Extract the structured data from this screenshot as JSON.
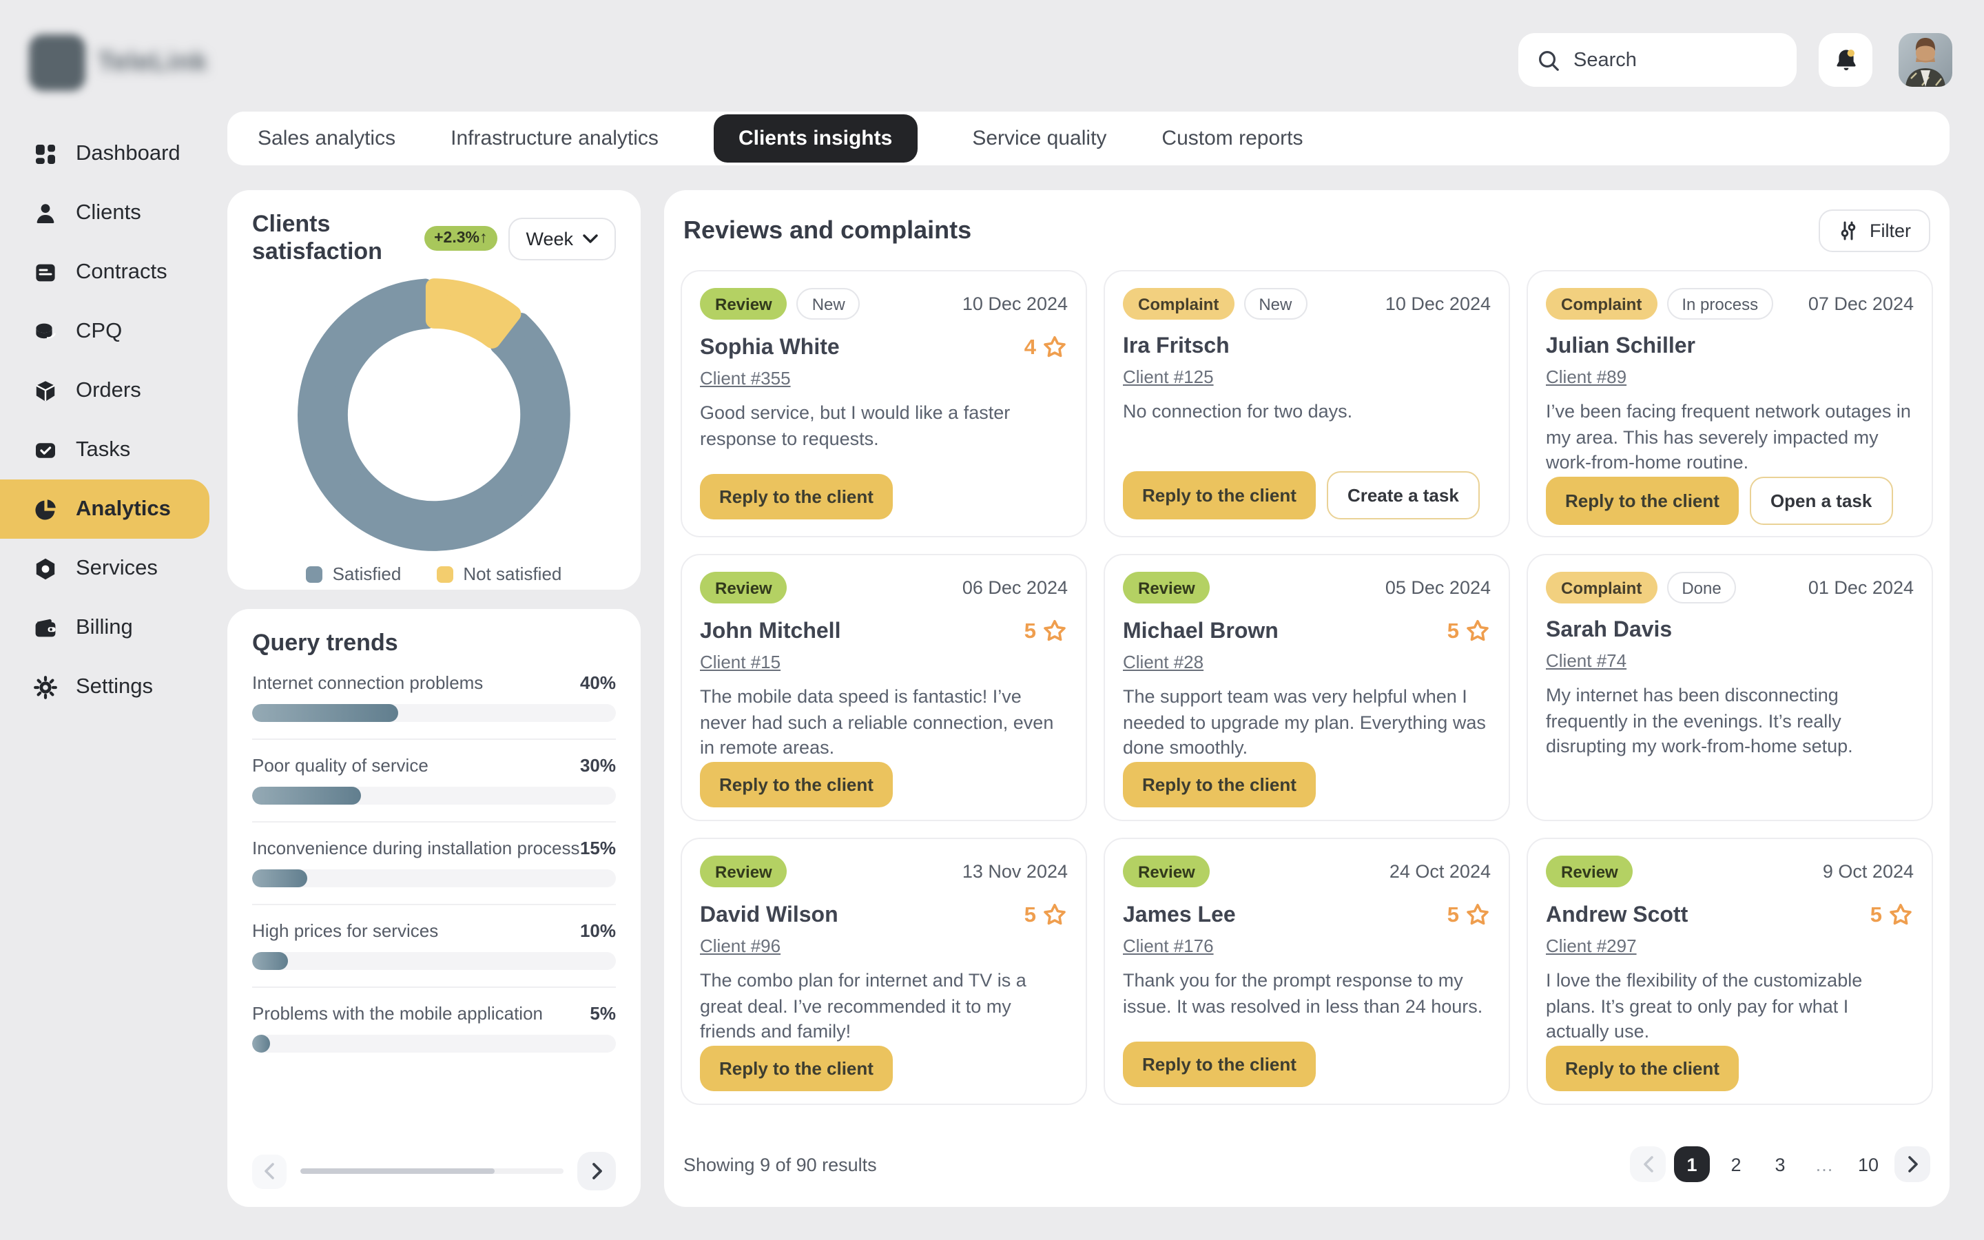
{
  "app": {
    "logo_text": "TeleLink"
  },
  "topbar": {
    "search_placeholder": "Search"
  },
  "sidebar": {
    "items": [
      {
        "label": "Dashboard",
        "icon": "dashboard",
        "active": false
      },
      {
        "label": "Clients",
        "icon": "user",
        "active": false
      },
      {
        "label": "Contracts",
        "icon": "contract",
        "active": false
      },
      {
        "label": "CPQ",
        "icon": "coins",
        "active": false
      },
      {
        "label": "Orders",
        "icon": "box",
        "active": false
      },
      {
        "label": "Tasks",
        "icon": "task",
        "active": false
      },
      {
        "label": "Analytics",
        "icon": "pie",
        "active": true
      },
      {
        "label": "Services",
        "icon": "hexnut",
        "active": false
      },
      {
        "label": "Billing",
        "icon": "wallet",
        "active": false
      },
      {
        "label": "Settings",
        "icon": "gear",
        "active": false
      }
    ]
  },
  "tabs": [
    {
      "label": "Sales analytics",
      "active": false
    },
    {
      "label": "Infrastructure analytics",
      "active": false
    },
    {
      "label": "Clients insights",
      "active": true
    },
    {
      "label": "Service quality",
      "active": false
    },
    {
      "label": "Custom reports",
      "active": false
    }
  ],
  "satisfaction": {
    "title": "Clients satisfaction",
    "badge": "+2.3%↑",
    "period": "Week",
    "colors": {
      "satisfied": "#7E96A6",
      "not_satisfied": "#F3CD6E"
    },
    "legend": [
      {
        "label": "Satisfied",
        "color": "#7E96A6"
      },
      {
        "label": "Not satisfied",
        "color": "#F3CD6E"
      }
    ]
  },
  "query_trends": {
    "title": "Query trends",
    "items": [
      {
        "label": "Internet connection problems",
        "pct": 40
      },
      {
        "label": "Poor quality of service",
        "pct": 30
      },
      {
        "label": "Inconvenience during installation process",
        "pct": 15
      },
      {
        "label": "High prices for services",
        "pct": 10
      },
      {
        "label": "Problems with the mobile application",
        "pct": 5
      }
    ]
  },
  "chart_data": [
    {
      "type": "pie",
      "title": "Clients satisfaction",
      "labels": [
        "Satisfied",
        "Not satisfied"
      ],
      "values": [
        88,
        12
      ],
      "colors": [
        "#7E96A6",
        "#F3CD6E"
      ],
      "legend_position": "bottom"
    },
    {
      "type": "bar",
      "title": "Query trends",
      "categories": [
        "Internet connection problems",
        "Poor quality of service",
        "Inconvenience during installation process",
        "High prices for services",
        "Problems with the mobile application"
      ],
      "values": [
        40,
        30,
        15,
        10,
        5
      ],
      "xlabel": "",
      "ylabel": "",
      "xlim": [
        0,
        100
      ],
      "unit": "%"
    }
  ],
  "reviews": {
    "title": "Reviews and complaints",
    "filter_label": "Filter",
    "cards": [
      {
        "type": "Review",
        "status": "New",
        "date": "10 Dec 2024",
        "name": "Sophia White",
        "client": "Client #355",
        "rating": 4,
        "text": "Good service, but I would like a faster response to requests.",
        "actions": [
          {
            "label": "Reply to the client",
            "style": "primary"
          }
        ]
      },
      {
        "type": "Complaint",
        "status": "New",
        "date": "10 Dec 2024",
        "name": "Ira Fritsch",
        "client": "Client #125",
        "rating": null,
        "text": "No connection for two days.",
        "actions": [
          {
            "label": "Reply to the client",
            "style": "primary"
          },
          {
            "label": "Create a task",
            "style": "secondary"
          }
        ]
      },
      {
        "type": "Complaint",
        "status": "In process",
        "date": "07 Dec 2024",
        "name": "Julian Schiller",
        "client": "Client #89",
        "rating": null,
        "text": "I’ve been facing frequent network outages in my area. This has severely impacted my work-from-home routine.",
        "actions": [
          {
            "label": "Reply to the client",
            "style": "primary"
          },
          {
            "label": "Open a task",
            "style": "secondary"
          }
        ]
      },
      {
        "type": "Review",
        "status": null,
        "date": "06 Dec 2024",
        "name": "John Mitchell",
        "client": "Client #15",
        "rating": 5,
        "text": "The mobile data speed is fantastic! I’ve never had such a reliable connection, even in remote areas.",
        "actions": [
          {
            "label": "Reply to the client",
            "style": "primary"
          }
        ]
      },
      {
        "type": "Review",
        "status": null,
        "date": "05 Dec 2024",
        "name": "Michael Brown",
        "client": "Client #28",
        "rating": 5,
        "text": "The support team was very helpful when I needed to upgrade my plan. Everything was done smoothly.",
        "actions": [
          {
            "label": "Reply to the client",
            "style": "primary"
          }
        ]
      },
      {
        "type": "Complaint",
        "status": "Done",
        "date": "01 Dec 2024",
        "name": "Sarah Davis",
        "client": "Client #74",
        "rating": null,
        "text": "My internet has been disconnecting frequently in the evenings. It’s really disrupting my work-from-home setup.",
        "actions": []
      },
      {
        "type": "Review",
        "status": null,
        "date": "13 Nov 2024",
        "name": "David Wilson",
        "client": "Client #96",
        "rating": 5,
        "text": "The combo plan for internet and TV is a great deal. I’ve recommended it to my friends and family!",
        "actions": [
          {
            "label": "Reply to the client",
            "style": "primary"
          }
        ]
      },
      {
        "type": "Review",
        "status": null,
        "date": "24 Oct 2024",
        "name": "James Lee",
        "client": "Client #176",
        "rating": 5,
        "text": "Thank you for the prompt response to my issue. It was resolved in less than 24 hours.",
        "actions": [
          {
            "label": "Reply to the client",
            "style": "primary"
          }
        ]
      },
      {
        "type": "Review",
        "status": null,
        "date": "9 Oct 2024",
        "name": "Andrew Scott",
        "client": "Client #297",
        "rating": 5,
        "text": "I love the flexibility of the customizable plans. It’s great to only pay for what I actually use.",
        "actions": [
          {
            "label": "Reply to the client",
            "style": "primary"
          }
        ]
      }
    ],
    "footer": {
      "showing": "Showing 9 of 90 results",
      "pages": [
        "1",
        "2",
        "3",
        "…",
        "10"
      ],
      "active_page": "1"
    }
  }
}
